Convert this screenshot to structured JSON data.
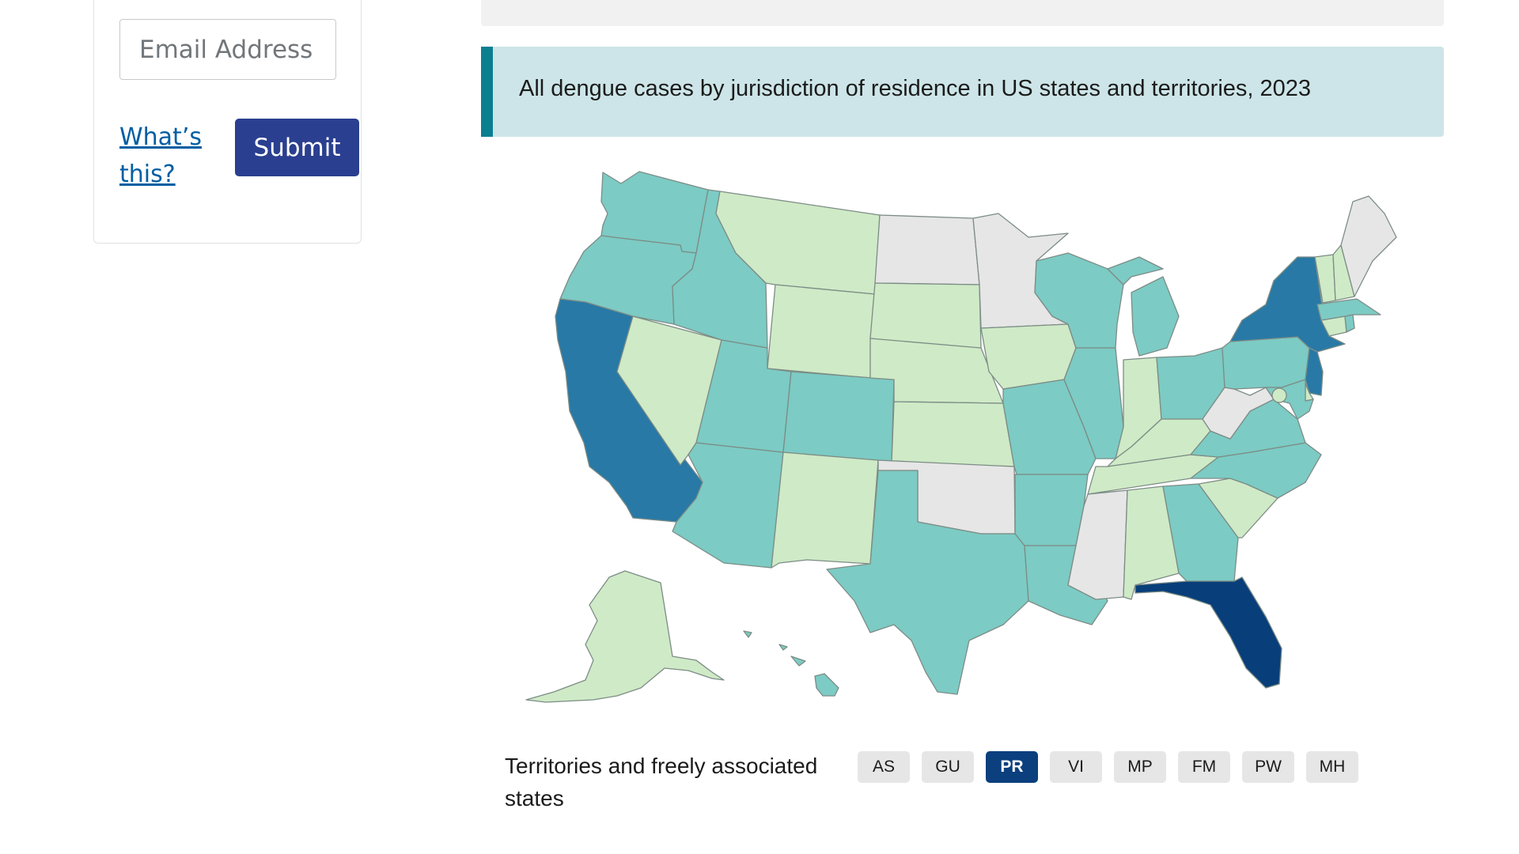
{
  "signup": {
    "email_placeholder": "Email Address",
    "whats_this_label": "What’s this?",
    "submit_label": "Submit"
  },
  "map": {
    "title": "All dengue cases by jurisdiction of residence in US states and territories, 2023",
    "colors": {
      "none": "#e6e6e6",
      "level1": "#cfeac6",
      "level2": "#7ccbc4",
      "level3": "#2879a6",
      "level4": "#083e7a",
      "title_accent": "#0a7f8f",
      "submit": "#2a3f8f"
    },
    "states": {
      "WA": "level2",
      "OR": "level2",
      "CA": "level3",
      "NV": "level1",
      "ID": "level2",
      "MT": "level1",
      "WY": "level1",
      "UT": "level2",
      "AZ": "level2",
      "CO": "level2",
      "NM": "level1",
      "ND": "none",
      "SD": "level1",
      "NE": "level1",
      "KS": "level1",
      "OK": "none",
      "TX": "level2",
      "MN": "none",
      "IA": "level1",
      "MO": "level2",
      "AR": "level2",
      "LA": "level2",
      "WI": "level2",
      "IL": "level2",
      "MI": "level2",
      "IN": "level1",
      "OH": "level2",
      "KY": "level1",
      "TN": "level1",
      "MS": "none",
      "AL": "level1",
      "GA": "level2",
      "FL": "level4",
      "SC": "level1",
      "NC": "level2",
      "VA": "level2",
      "WV": "none",
      "PA": "level2",
      "NY": "level3",
      "NJ": "level3",
      "DE": "level1",
      "MD": "level2",
      "DC": "level1",
      "CT": "level1",
      "RI": "level2",
      "MA": "level2",
      "VT": "level1",
      "NH": "level1",
      "ME": "none",
      "AK": "level1",
      "HI": "level2"
    }
  },
  "territories": {
    "label": "Territories and freely associated states",
    "buttons": [
      {
        "code": "AS",
        "active": false
      },
      {
        "code": "GU",
        "active": false
      },
      {
        "code": "PR",
        "active": true
      },
      {
        "code": "VI",
        "active": false
      },
      {
        "code": "MP",
        "active": false
      },
      {
        "code": "FM",
        "active": false
      },
      {
        "code": "PW",
        "active": false
      },
      {
        "code": "MH",
        "active": false
      }
    ]
  }
}
